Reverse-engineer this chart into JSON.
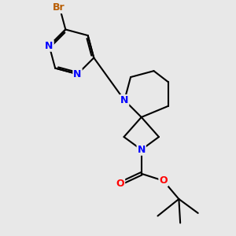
{
  "background_color": "#e8e8e8",
  "atom_colors": {
    "N": "#0000ff",
    "O": "#ff0000",
    "Br": "#b85c00",
    "C": "#000000"
  },
  "bond_color": "#000000",
  "bond_width": 1.5,
  "font_size_atoms": 9,
  "font_size_br": 9
}
